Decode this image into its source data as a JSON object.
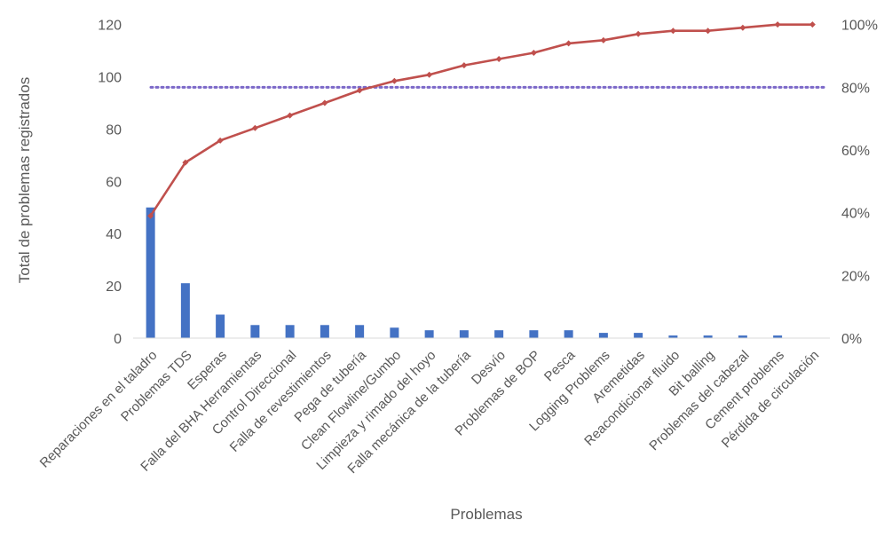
{
  "chart_data": {
    "type": "pareto",
    "xlabel": "Problemas",
    "ylabel": "Total de problemas registrados",
    "ylim": [
      0,
      126
    ],
    "y_ticks": [
      0,
      20,
      40,
      60,
      80,
      100,
      120
    ],
    "y2lim": [
      0,
      1.05
    ],
    "y2_ticks": [
      "0%",
      "20%",
      "40%",
      "60%",
      "80%",
      "100%"
    ],
    "y2_tick_values": [
      0,
      0.2,
      0.4,
      0.6,
      0.8,
      1.0
    ],
    "categories": [
      "Reparaciones en el taladro",
      "Problemas TDS",
      "Esperas",
      "Falla del BHA Herramientas",
      "Control Direccional",
      "Falla de revestimientos",
      "Pega de tubería",
      "Clean Flowline/Gumbo",
      "Limpieza y rimado del hoyo",
      "Falla mecánica de la tubería",
      "Desvío",
      "Problemas de BOP",
      "Pesca",
      "Logging Problems",
      "Aremetidas",
      "Reacondicionar fluido",
      "Bit balling",
      "Problemas del cabezal",
      "Cement problems",
      "Pérdida de circulación"
    ],
    "series": [
      {
        "type": "bar",
        "axis": "primary",
        "color": "#4472C4",
        "values": [
          50,
          21,
          9,
          5,
          5,
          5,
          5,
          4,
          3,
          3,
          3,
          3,
          3,
          2,
          2,
          1,
          1,
          1,
          1,
          0
        ]
      },
      {
        "type": "line",
        "axis": "secondary",
        "color": "#C0504D",
        "values": [
          0.39,
          0.56,
          0.63,
          0.67,
          0.71,
          0.75,
          0.79,
          0.82,
          0.84,
          0.87,
          0.89,
          0.91,
          0.94,
          0.95,
          0.97,
          0.98,
          0.98,
          0.99,
          1.0,
          1.0
        ]
      },
      {
        "type": "reference-line",
        "axis": "secondary",
        "color": "#7B68C8",
        "style": "dotted",
        "value": 0.8
      }
    ],
    "grid": false,
    "legend": "none"
  }
}
